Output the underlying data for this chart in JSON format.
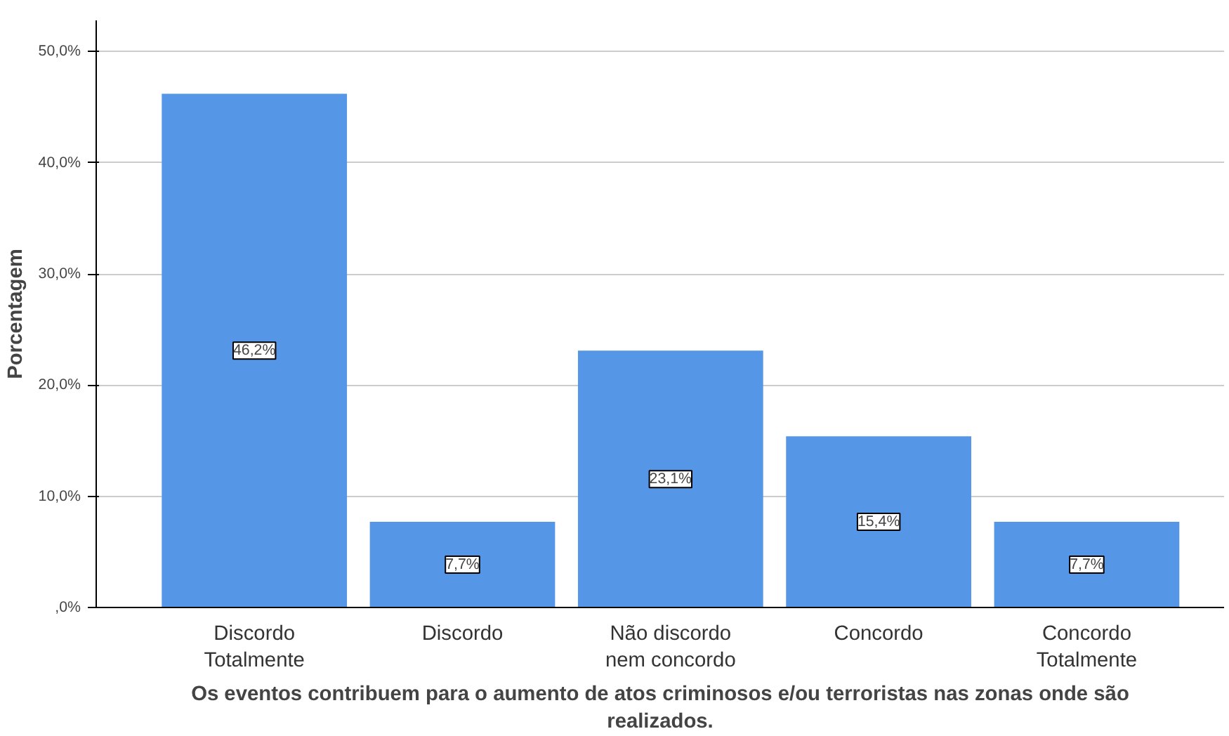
{
  "chart_data": {
    "type": "bar",
    "xlabel": "Os eventos contribuem para o aumento de atos criminosos e/ou terroristas nas zonas onde são realizados.",
    "ylabel": "Porcentagem",
    "categories": [
      "Discordo Totalmente",
      "Discordo",
      "Não discordo nem concordo",
      "Concordo",
      "Concordo Totalmente"
    ],
    "values": [
      46.2,
      7.7,
      23.1,
      15.4,
      7.7
    ],
    "value_labels": [
      "46,2%",
      "7,7%",
      "23,1%",
      "15,4%",
      "7,7%"
    ],
    "color": "#5596e6",
    "ylim": [
      0,
      52.8
    ],
    "yticks": [
      {
        "value": 0,
        "label": ",0%"
      },
      {
        "value": 10,
        "label": "10,0%"
      },
      {
        "value": 20,
        "label": "20,0%"
      },
      {
        "value": 30,
        "label": "30,0%"
      },
      {
        "value": 40,
        "label": "40,0%"
      },
      {
        "value": 50,
        "label": "50,0%"
      }
    ],
    "grid": "y"
  }
}
